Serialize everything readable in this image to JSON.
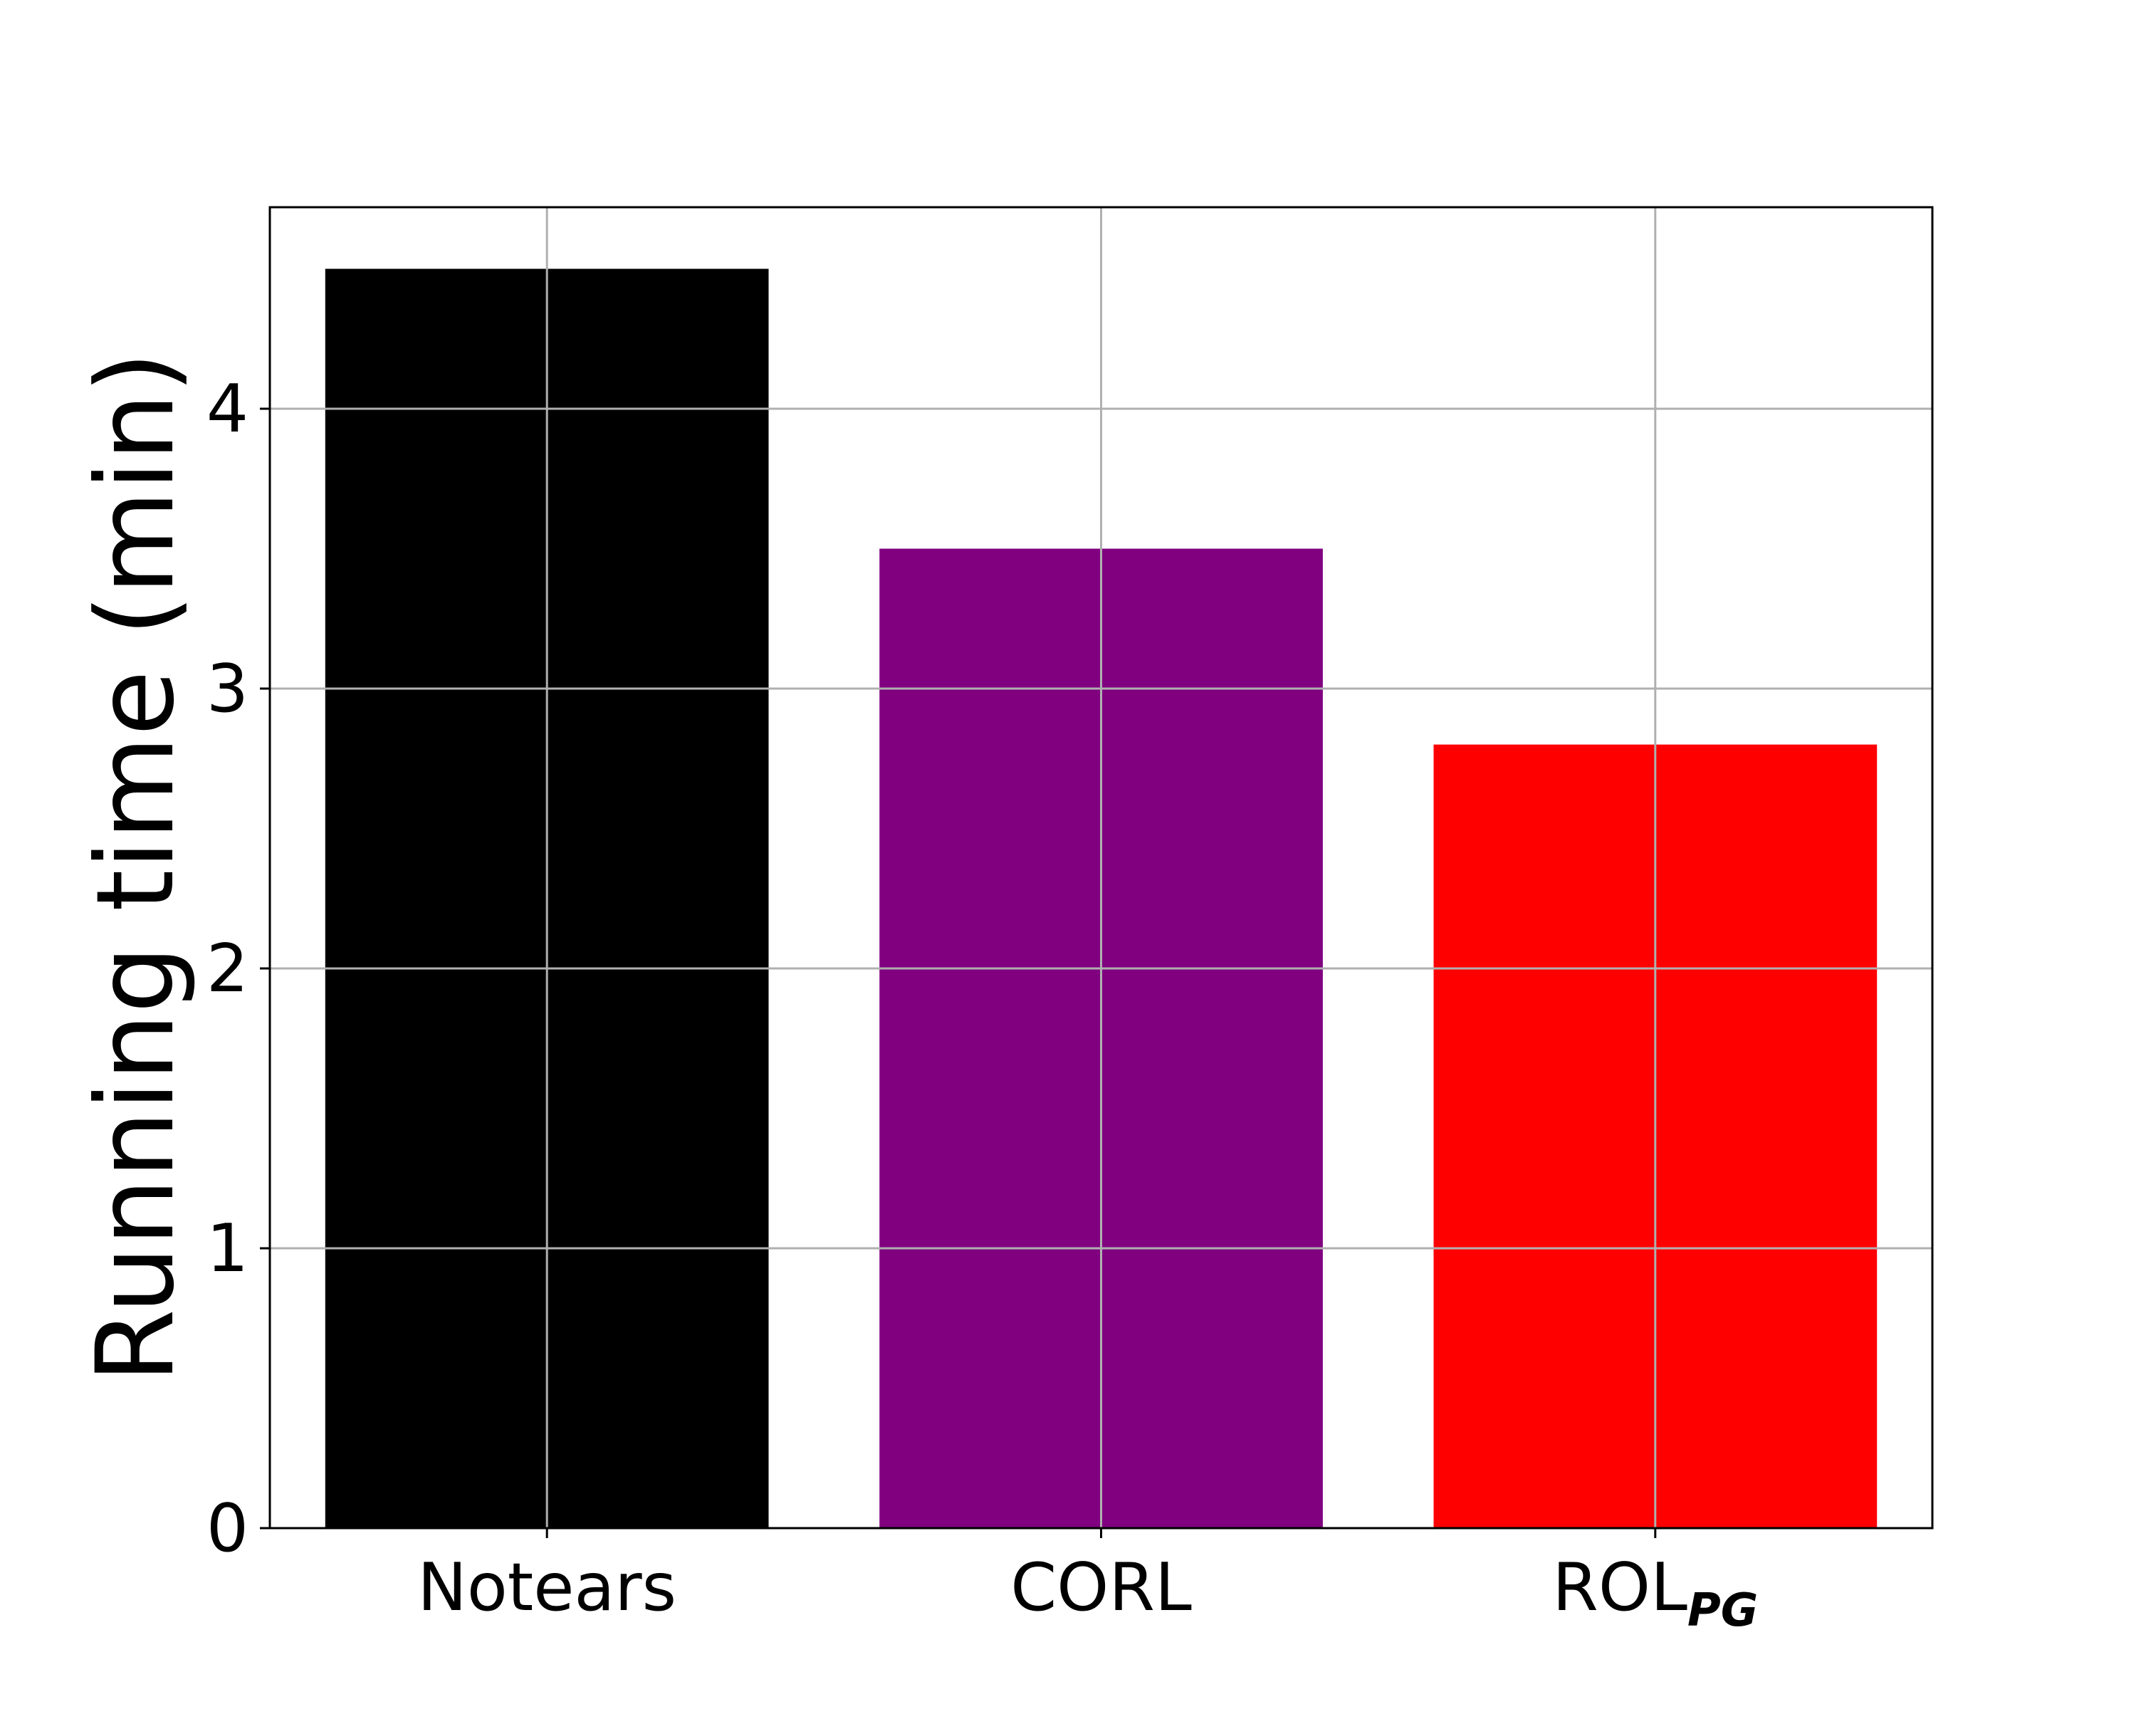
{
  "chart_data": {
    "type": "bar",
    "categories": [
      {
        "label": "Notears",
        "label_sub": ""
      },
      {
        "label": "CORL",
        "label_sub": ""
      },
      {
        "label": "ROL",
        "label_sub": "PG"
      }
    ],
    "values": [
      4.5,
      3.5,
      2.8
    ],
    "colors": [
      "#000000",
      "#800080",
      "#ff0000"
    ],
    "title": "",
    "xlabel": "",
    "ylabel": "Running time (min)",
    "ylim": [
      0,
      4.72
    ],
    "yticks": [
      0,
      1,
      2,
      3,
      4
    ],
    "grid": true
  }
}
